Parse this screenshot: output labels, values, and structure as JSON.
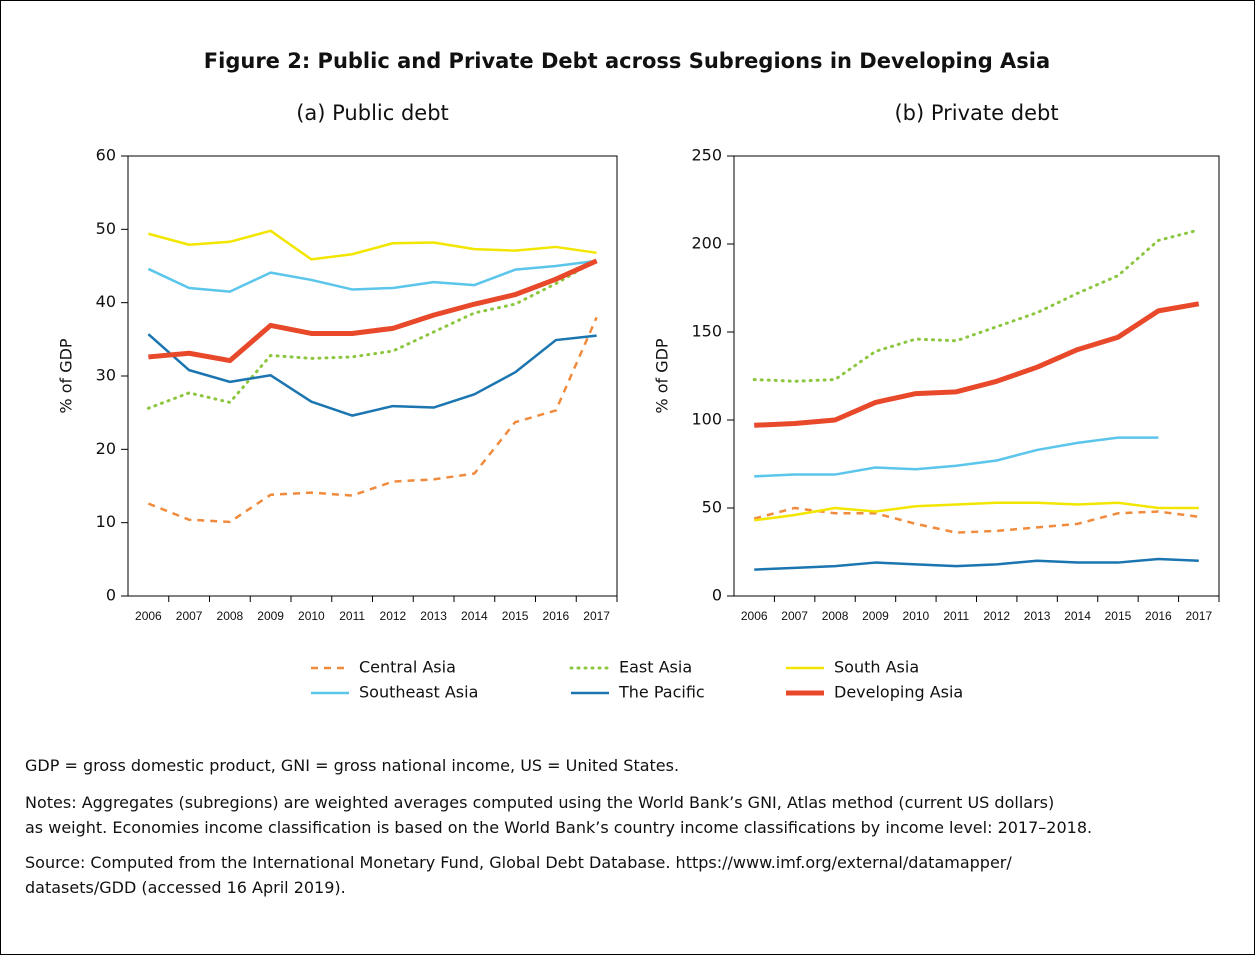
{
  "figure_title": "Figure 2: Public and Private Debt across Subregions in Developing Asia",
  "chart_data": [
    {
      "type": "line",
      "title": "(a) Public debt",
      "ylabel": "% of GDP",
      "categories": [
        "2006",
        "2007",
        "2008",
        "2009",
        "2010",
        "2011",
        "2012",
        "2013",
        "2014",
        "2015",
        "2016",
        "2017"
      ],
      "ylim": [
        0,
        60
      ],
      "yticks": [
        0,
        10,
        20,
        30,
        40,
        50,
        60
      ],
      "series": [
        {
          "name": "Central Asia",
          "color": "#f08a3c",
          "style": "dashed",
          "width": 2.5,
          "values": [
            12.6,
            10.4,
            10.1,
            13.8,
            14.1,
            13.7,
            15.6,
            15.9,
            16.7,
            23.7,
            25.3,
            38.0
          ]
        },
        {
          "name": "East Asia",
          "color": "#8cc63f",
          "style": "dotted",
          "width": 3,
          "values": [
            25.6,
            27.7,
            26.4,
            32.8,
            32.4,
            32.6,
            33.4,
            36.0,
            38.6,
            39.8,
            42.6,
            45.8
          ]
        },
        {
          "name": "South Asia",
          "color": "#f2e600",
          "style": "solid",
          "width": 2.5,
          "values": [
            49.4,
            47.9,
            48.3,
            49.8,
            45.9,
            46.6,
            48.1,
            48.2,
            47.3,
            47.1,
            47.6,
            46.8
          ]
        },
        {
          "name": "Southeast Asia",
          "color": "#5bc5eb",
          "style": "solid",
          "width": 2.5,
          "values": [
            44.6,
            42.0,
            41.5,
            44.1,
            43.1,
            41.8,
            42.0,
            42.8,
            42.4,
            44.5,
            45.0,
            45.7
          ]
        },
        {
          "name": "The Pacific",
          "color": "#1a75b0",
          "style": "solid",
          "width": 2.5,
          "values": [
            35.7,
            30.8,
            29.2,
            30.1,
            26.5,
            24.6,
            25.9,
            25.7,
            27.5,
            30.5,
            34.9,
            35.5
          ]
        },
        {
          "name": "Developing Asia",
          "color": "#e8492a",
          "style": "solid",
          "width": 5,
          "values": [
            32.6,
            33.1,
            32.1,
            36.9,
            35.8,
            35.8,
            36.5,
            38.3,
            39.8,
            41.1,
            43.2,
            45.7
          ]
        }
      ]
    },
    {
      "type": "line",
      "title": "(b) Private debt",
      "ylabel": "% of GDP",
      "categories": [
        "2006",
        "2007",
        "2008",
        "2009",
        "2010",
        "2011",
        "2012",
        "2013",
        "2014",
        "2015",
        "2016",
        "2017"
      ],
      "ylim": [
        0,
        250
      ],
      "yticks": [
        0,
        50,
        100,
        150,
        200,
        250
      ],
      "series": [
        {
          "name": "Central Asia",
          "color": "#f08a3c",
          "style": "dashed",
          "width": 2.5,
          "values": [
            44,
            50,
            47,
            47,
            41,
            36,
            37,
            39,
            41,
            47,
            48,
            45
          ]
        },
        {
          "name": "East Asia",
          "color": "#8cc63f",
          "style": "dotted",
          "width": 3,
          "values": [
            123,
            122,
            123,
            139,
            146,
            145,
            153,
            161,
            172,
            182,
            202,
            208
          ]
        },
        {
          "name": "South Asia",
          "color": "#f2e600",
          "style": "solid",
          "width": 2.5,
          "values": [
            43,
            46,
            50,
            48,
            51,
            52,
            53,
            53,
            52,
            53,
            50,
            50
          ]
        },
        {
          "name": "Southeast Asia",
          "color": "#5bc5eb",
          "style": "solid",
          "width": 2.5,
          "values": [
            68,
            69,
            69,
            73,
            72,
            74,
            77,
            83,
            87,
            90,
            90,
            null
          ]
        },
        {
          "name": "The Pacific",
          "color": "#1a75b0",
          "style": "solid",
          "width": 2.5,
          "values": [
            15,
            16,
            17,
            19,
            18,
            17,
            18,
            20,
            19,
            19,
            21,
            20
          ]
        },
        {
          "name": "Developing Asia",
          "color": "#e8492a",
          "style": "solid",
          "width": 5,
          "values": [
            97,
            98,
            100,
            110,
            115,
            116,
            122,
            130,
            140,
            147,
            162,
            166
          ]
        }
      ]
    }
  ],
  "footnotes": {
    "abbreviations": "GDP = gross domestic product, GNI = gross national income, US = United States.",
    "notes": [
      "Notes: Aggregates (subregions) are weighted averages computed using the World Bank’s GNI, Atlas method (current US dollars)",
      "as weight. Economies income classification is based on the World Bank’s country income classifications by income level: 2017–2018."
    ],
    "source": [
      "Source: Computed from the International Monetary Fund, Global Debt Database. https://www.imf.org/external/datamapper/",
      "datasets/GDD (accessed 16 April 2019)."
    ]
  }
}
